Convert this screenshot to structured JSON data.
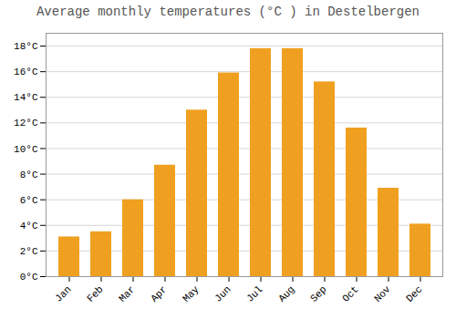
{
  "chart_data": {
    "type": "bar",
    "title": "Average monthly temperatures (°C ) in Destelbergen",
    "categories": [
      "Jan",
      "Feb",
      "Mar",
      "Apr",
      "May",
      "Jun",
      "Jul",
      "Aug",
      "Sep",
      "Oct",
      "Nov",
      "Dec"
    ],
    "values": [
      3.1,
      3.5,
      6.0,
      8.7,
      13.0,
      15.9,
      17.8,
      17.8,
      15.2,
      11.6,
      6.9,
      4.1
    ],
    "color": "#F0A020",
    "ylim": [
      0,
      19
    ],
    "yticks": [
      {
        "value": 0,
        "label": "0°C"
      },
      {
        "value": 2,
        "label": "2°C"
      },
      {
        "value": 4,
        "label": "4°C"
      },
      {
        "value": 6,
        "label": "6°C"
      },
      {
        "value": 8,
        "label": "8°C"
      },
      {
        "value": 10,
        "label": "10°C"
      },
      {
        "value": 12,
        "label": "12°C"
      },
      {
        "value": 14,
        "label": "14°C"
      },
      {
        "value": 16,
        "label": "16°C"
      },
      {
        "value": 18,
        "label": "18°C"
      }
    ],
    "grid": true
  }
}
